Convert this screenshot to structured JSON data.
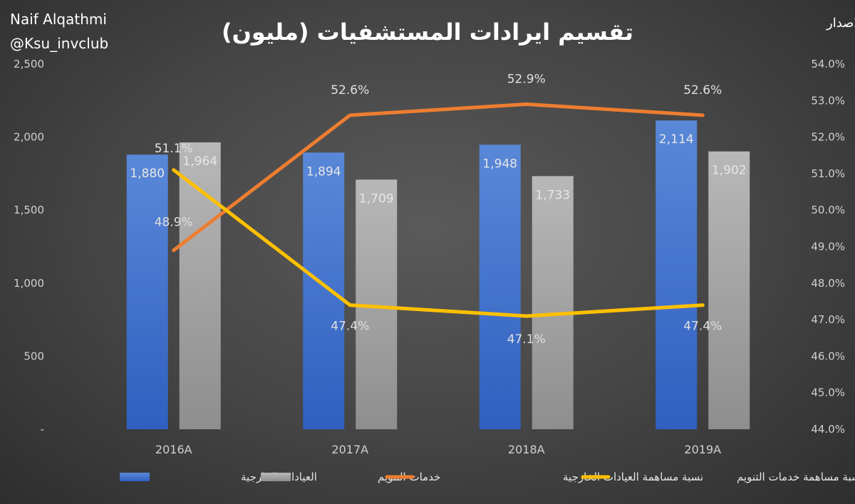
{
  "header": {
    "title": "تقسيم ايرادات المستشفيات (مليون)",
    "author_name": "Naif Alqathmi",
    "author_handle": "@Ksu_invclub",
    "source": "المصدر:نشرة الاصدار"
  },
  "chart_data": {
    "type": "bar",
    "categories": [
      "2016A",
      "2017A",
      "2018A",
      "2019A"
    ],
    "series": [
      {
        "name": "العيادات الخارجية",
        "type": "bar",
        "axis": "left",
        "values": [
          1880,
          1894,
          1948,
          2114
        ],
        "labels": [
          "1,880",
          "1,894",
          "1,948",
          "2,114"
        ]
      },
      {
        "name": "خدمات التنويم",
        "type": "bar",
        "axis": "left",
        "values": [
          1964,
          1709,
          1733,
          1902
        ],
        "labels": [
          "1,964",
          "1,709",
          "1,733",
          "1,902"
        ]
      },
      {
        "name": "نسبة مساهمة العيادات الخارجية",
        "type": "line",
        "axis": "right",
        "values": [
          48.9,
          52.6,
          52.9,
          52.6
        ],
        "labels": [
          "48.9%",
          "52.6%",
          "52.9%",
          "52.6%"
        ]
      },
      {
        "name": "نسبة مساهمة خدمات التنويم",
        "type": "line",
        "axis": "right",
        "values": [
          51.1,
          47.4,
          47.1,
          47.4
        ],
        "labels": [
          "51.1%",
          "47.4%",
          "47.1%",
          "47.4%"
        ]
      }
    ],
    "y_left": {
      "min": 0,
      "max": 2500,
      "ticks": [
        0,
        500,
        1000,
        1500,
        2000,
        2500
      ],
      "tick_labels": [
        "-",
        "500",
        "1,000",
        "1,500",
        "2,000",
        "2,500"
      ]
    },
    "y_right": {
      "min": 44,
      "max": 54,
      "ticks": [
        44,
        45,
        46,
        47,
        48,
        49,
        50,
        51,
        52,
        53,
        54
      ],
      "tick_labels": [
        "44.0%",
        "45.0%",
        "46.0%",
        "47.0%",
        "48.0%",
        "49.0%",
        "50.0%",
        "51.0%",
        "52.0%",
        "53.0%",
        "54.0%"
      ]
    },
    "colors": {
      "outpatient": "#4472C4",
      "inpatient": "#A5A5A5",
      "outpatient_share": "#ED7D31",
      "inpatient_share": "#FFC000"
    },
    "grid": false,
    "legend_position": "bottom"
  }
}
